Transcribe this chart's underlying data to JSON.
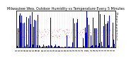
{
  "title": "Milwaukee Wea. Outdoor Humidity vs Temperature Every 5 Minutes",
  "title_fontsize": 3.5,
  "background_color": "#ffffff",
  "grid_color": "#aaaaaa",
  "bar_color": "#0000cc",
  "dot_color": "#dd0000",
  "ylim_humidity": [
    0,
    100
  ],
  "ylim_temp": [
    -20,
    110
  ],
  "n_points": 500,
  "seed": 7,
  "right_ytick_labels": [
    "10",
    "9",
    "8",
    "7",
    "6",
    "5",
    "4",
    "3",
    "2",
    "1"
  ],
  "right_ytick_vals": [
    100,
    90,
    80,
    70,
    60,
    50,
    40,
    30,
    20,
    10
  ]
}
